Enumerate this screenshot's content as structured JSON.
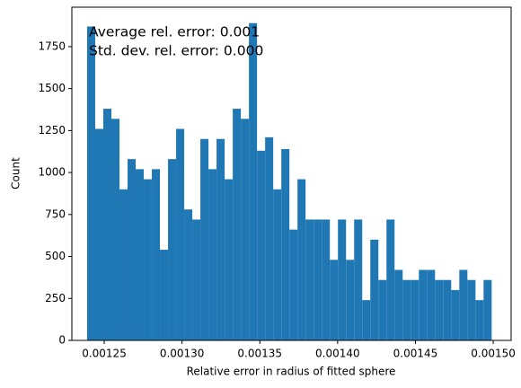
{
  "chart_data": {
    "type": "histogram",
    "xlabel": "Relative error in radius of fitted sphere",
    "ylabel": "Count",
    "annotations": [
      "Average rel. error: 0.001",
      "Std. dev. rel. error: 0.000"
    ],
    "color": "#1f77b4",
    "bins": [
      0.001239,
      0.0012442,
      0.0012494,
      0.0012546,
      0.0012598,
      0.001265,
      0.0012702,
      0.0012754,
      0.0012806,
      0.0012858,
      0.001291,
      0.0012962,
      0.0013014,
      0.0013066,
      0.0013118,
      0.001317,
      0.0013222,
      0.0013274,
      0.0013326,
      0.0013378,
      0.001343,
      0.0013482,
      0.0013534,
      0.0013586,
      0.0013638,
      0.001369,
      0.0013742,
      0.0013794,
      0.0013846,
      0.0013898,
      0.001395,
      0.0014002,
      0.0014054,
      0.0014106,
      0.0014158,
      0.001421,
      0.0014262,
      0.0014314,
      0.0014366,
      0.0014418,
      0.001447,
      0.0014522,
      0.0014574,
      0.0014626,
      0.0014678,
      0.001473,
      0.0014782,
      0.0014834,
      0.0014886,
      0.0014938,
      0.001499
    ],
    "values": [
      1870,
      1260,
      1380,
      1320,
      900,
      1080,
      1020,
      960,
      1020,
      540,
      1080,
      1260,
      780,
      720,
      1200,
      1020,
      1200,
      960,
      1380,
      1320,
      1890,
      1130,
      1210,
      900,
      1140,
      660,
      960,
      720,
      720,
      720,
      480,
      720,
      480,
      720,
      240,
      600,
      360,
      720,
      420,
      360,
      360,
      420,
      420,
      360,
      360,
      300,
      420,
      360,
      240,
      360
    ],
    "xlim": [
      0.0012292,
      0.0015115
    ],
    "xticks": [
      0.00125,
      {
        "value": 0.0013,
        "label": "0.00130"
      },
      0.00135,
      {
        "value": 0.0014,
        "label": "0.00140"
      },
      0.00145,
      {
        "value": 0.0015,
        "label": "0.00150"
      }
    ],
    "ylim": [
      0,
      1985
    ],
    "yticks": [
      0,
      250,
      500,
      750,
      1000,
      1250,
      1500,
      1750
    ],
    "grid": false
  }
}
